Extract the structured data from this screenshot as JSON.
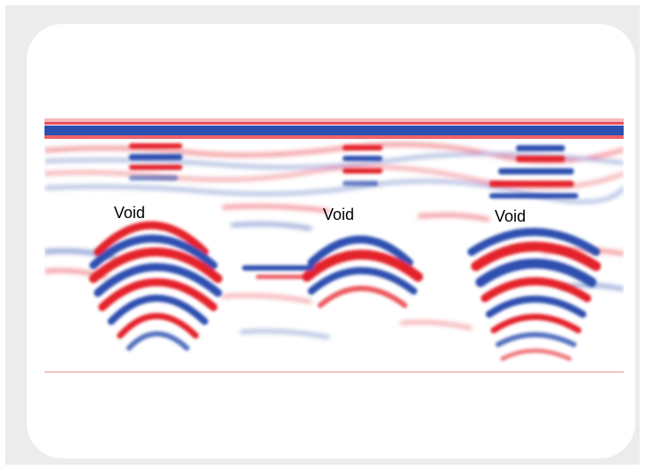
{
  "figure": {
    "annotations": [
      {
        "label": "Void"
      },
      {
        "label": "Void"
      },
      {
        "label": "Void"
      }
    ]
  },
  "colors": {
    "background_frame": "#ececec",
    "card": "#ffffff",
    "positive_reflection": "#e4202a",
    "negative_reflection": "#2d4fb0"
  }
}
